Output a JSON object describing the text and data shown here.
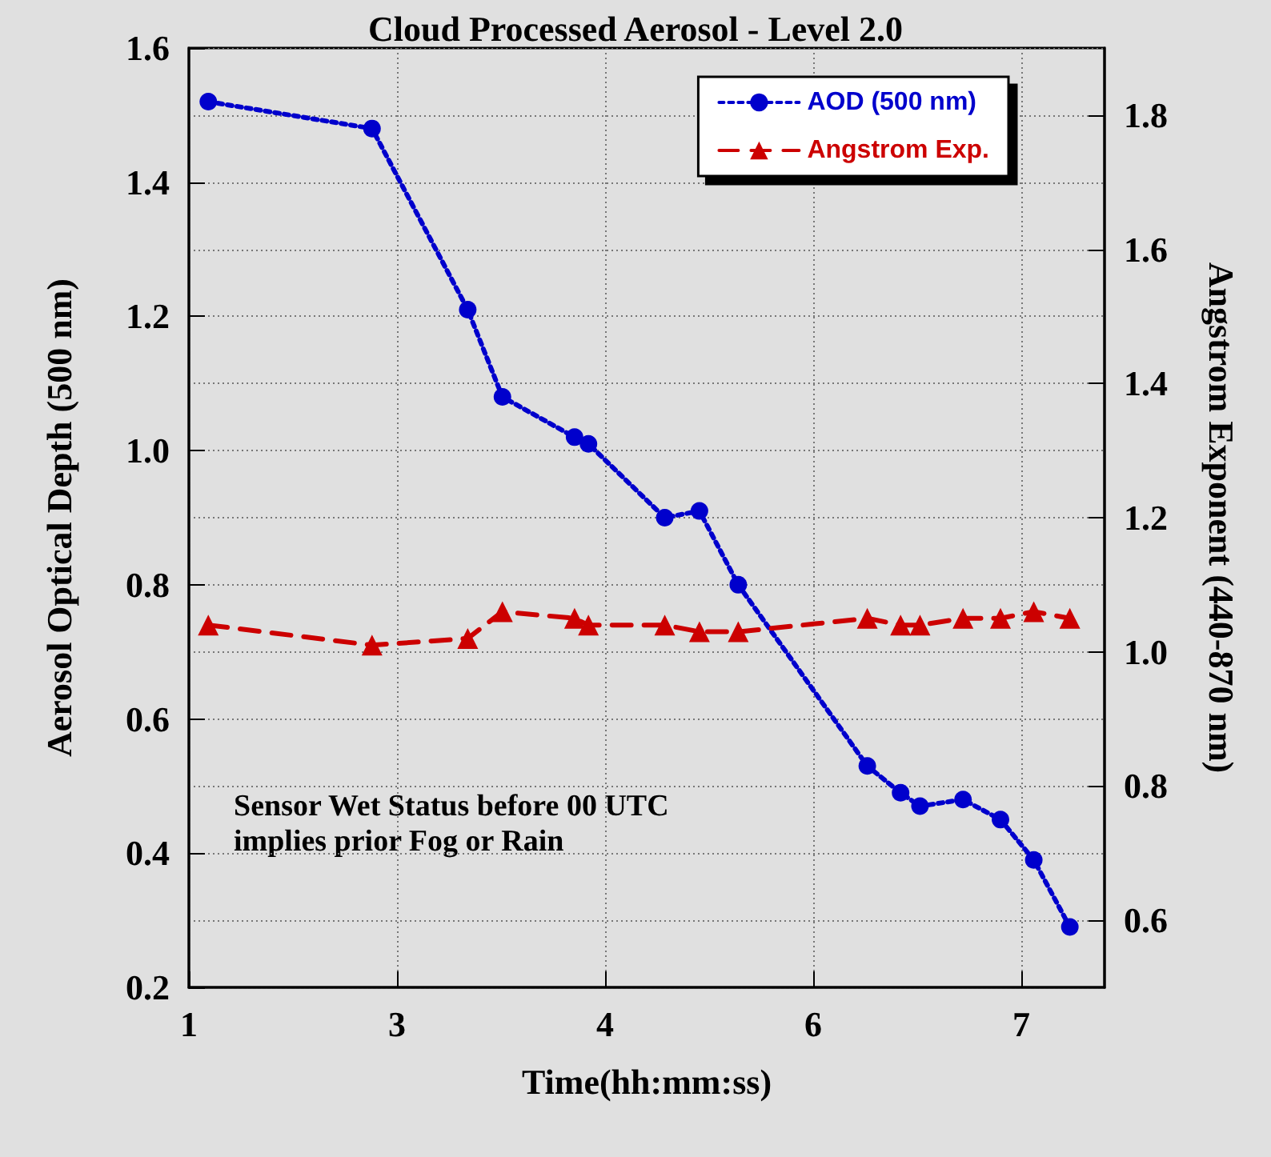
{
  "chart_data": {
    "type": "line",
    "title": "Cloud Processed Aerosol - Level 2.0",
    "xlabel": "Time(hh:mm:ss)",
    "ylabel": "Aerosol Optical Depth (500 nm)",
    "y2label": "Angstrom Exponent (440-870 nm)",
    "x": [
      1.14,
      2.32,
      3.01,
      3.26,
      3.78,
      3.88,
      4.43,
      4.68,
      4.96,
      5.89,
      6.13,
      6.27,
      6.58,
      6.85,
      7.09,
      7.35
    ],
    "series": [
      {
        "name": "AOD (500 nm)",
        "color": "#0000cc",
        "marker": "circle",
        "line_style": "dotted",
        "values": [
          1.52,
          1.48,
          1.21,
          1.08,
          1.02,
          1.01,
          0.9,
          0.91,
          0.8,
          0.53,
          0.49,
          0.47,
          0.48,
          0.45,
          0.39,
          0.29
        ]
      },
      {
        "name": "Angstrom Exp.",
        "color": "#cc0000",
        "marker": "triangle",
        "line_style": "dashed",
        "axis": "y2",
        "values": [
          1.04,
          1.01,
          1.02,
          1.06,
          1.05,
          1.04,
          1.04,
          1.03,
          1.03,
          1.05,
          1.04,
          1.04,
          1.05,
          1.05,
          1.06,
          1.05
        ]
      }
    ],
    "xlim": [
      1,
      7.6
    ],
    "xticks": [
      1,
      {
        "value": 2.5,
        "label": "3"
      },
      4,
      {
        "value": 5.5,
        "label": "6"
      },
      7
    ],
    "ylim": [
      0.2,
      1.6
    ],
    "yticks": [
      0.2,
      0.4,
      0.6,
      0.8,
      {
        "value": 1,
        "label": "1.0"
      },
      1.2,
      1.4,
      1.6
    ],
    "y2lim": [
      0.5,
      1.9
    ],
    "y2ticks": [
      0.6,
      0.8,
      {
        "value": 1,
        "label": "1.0"
      },
      1.2,
      1.4,
      1.6,
      1.8
    ],
    "grid": true,
    "legend": "top right",
    "annotations": [
      "Sensor Wet Status before 00 UTC\nimplies prior Fog or Rain"
    ]
  }
}
